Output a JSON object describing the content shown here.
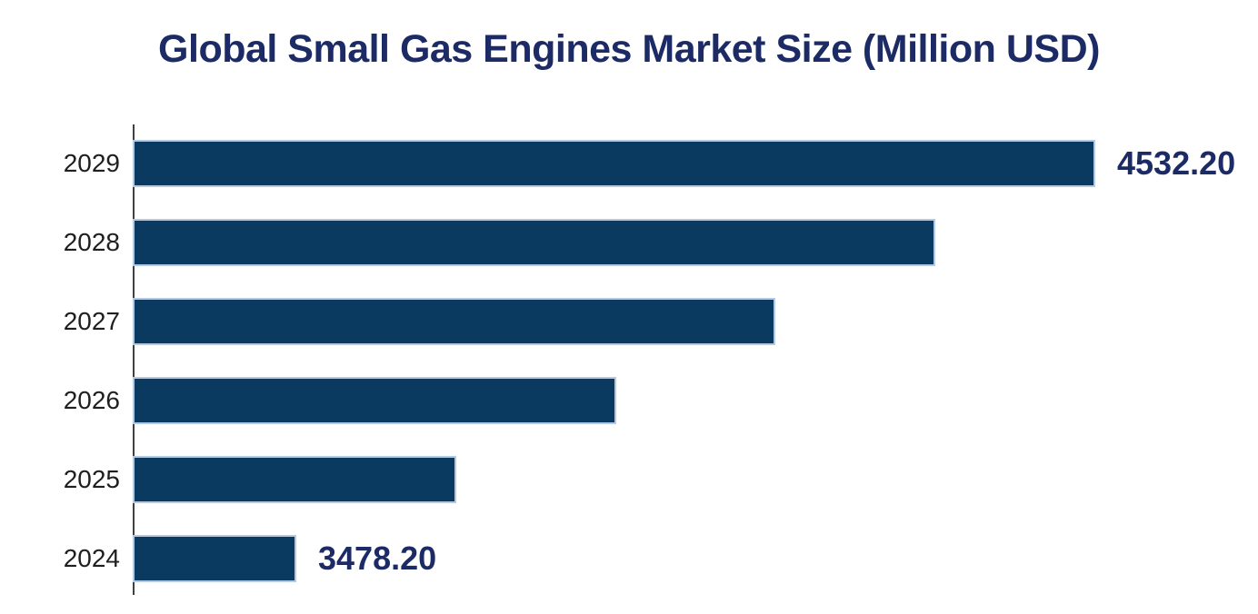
{
  "chart_data": {
    "type": "bar",
    "orientation": "horizontal",
    "title": "Global Small Gas Engines Market Size (Million USD)",
    "categories": [
      "2029",
      "2028",
      "2027",
      "2026",
      "2025",
      "2024"
    ],
    "values": [
      4532.2,
      4321.4,
      4110.6,
      3899.8,
      3689.0,
      3478.2
    ],
    "value_labels": [
      "4532.20",
      null,
      null,
      null,
      null,
      "3478.20"
    ],
    "xlim": [
      3267.4,
      4532.2
    ],
    "grid": false,
    "legend": false,
    "layout_hints": {
      "category_axis": "left",
      "bars_descend_top_to_bottom": true,
      "labeled_bars": [
        "2029",
        "2024"
      ]
    },
    "colors": {
      "bar_fill": "#0b3a61",
      "bar_edge": "#b7c9e2",
      "title_text": "#1c2b66",
      "value_label_text": "#1c2b66",
      "category_label_text": "#1f1f1f",
      "axis_line": "#404040",
      "background": "#ffffff"
    }
  }
}
